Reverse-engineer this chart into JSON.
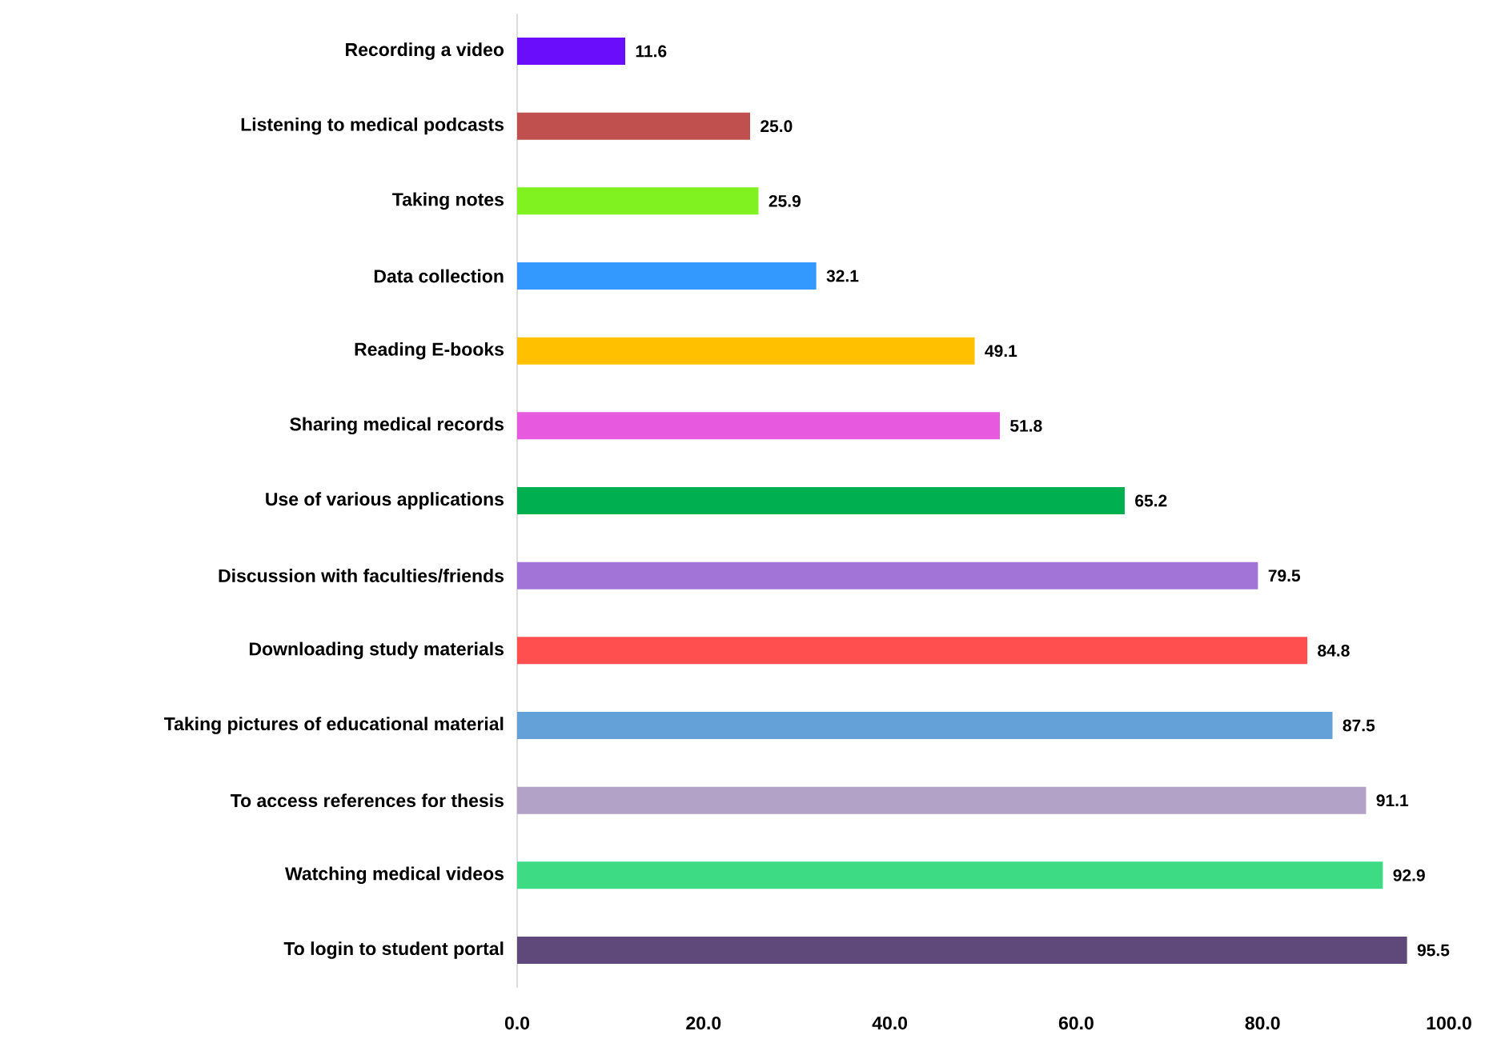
{
  "chart_data": {
    "type": "bar",
    "orientation": "horizontal",
    "categories": [
      "Recording a video",
      "Listening to medical podcasts",
      "Taking notes",
      "Data collection",
      "Reading E-books",
      "Sharing medical records",
      "Use of various applications",
      "Discussion with faculties/friends",
      "Downloading study materials",
      "Taking pictures of educational material",
      "To access references for thesis",
      "Watching medical videos",
      "To login to student portal"
    ],
    "values": [
      11.6,
      25.0,
      25.9,
      32.1,
      49.1,
      51.8,
      65.2,
      79.5,
      84.8,
      87.5,
      91.1,
      92.9,
      95.5
    ],
    "value_labels": [
      "11.6",
      "25.0",
      "25.9",
      "32.1",
      "49.1",
      "51.8",
      "65.2",
      "79.5",
      "84.8",
      "87.5",
      "91.1",
      "92.9",
      "95.5"
    ],
    "colors": [
      "#6a0dfa",
      "#c0504d",
      "#7ff21f",
      "#3399ff",
      "#ffc000",
      "#e75ae0",
      "#00b050",
      "#a274d8",
      "#ff4f4f",
      "#63a1d8",
      "#b3a2c7",
      "#3ddc84",
      "#5f497a"
    ],
    "xlim": [
      0,
      100
    ],
    "xticks": [
      {
        "value": 0,
        "label": "0.0"
      },
      {
        "value": 20,
        "label": "20.0"
      },
      {
        "value": 40,
        "label": "40.0"
      },
      {
        "value": 60,
        "label": "60.0"
      },
      {
        "value": 80,
        "label": "80.0"
      },
      {
        "value": 100,
        "label": "100.0"
      }
    ],
    "grid": false
  }
}
